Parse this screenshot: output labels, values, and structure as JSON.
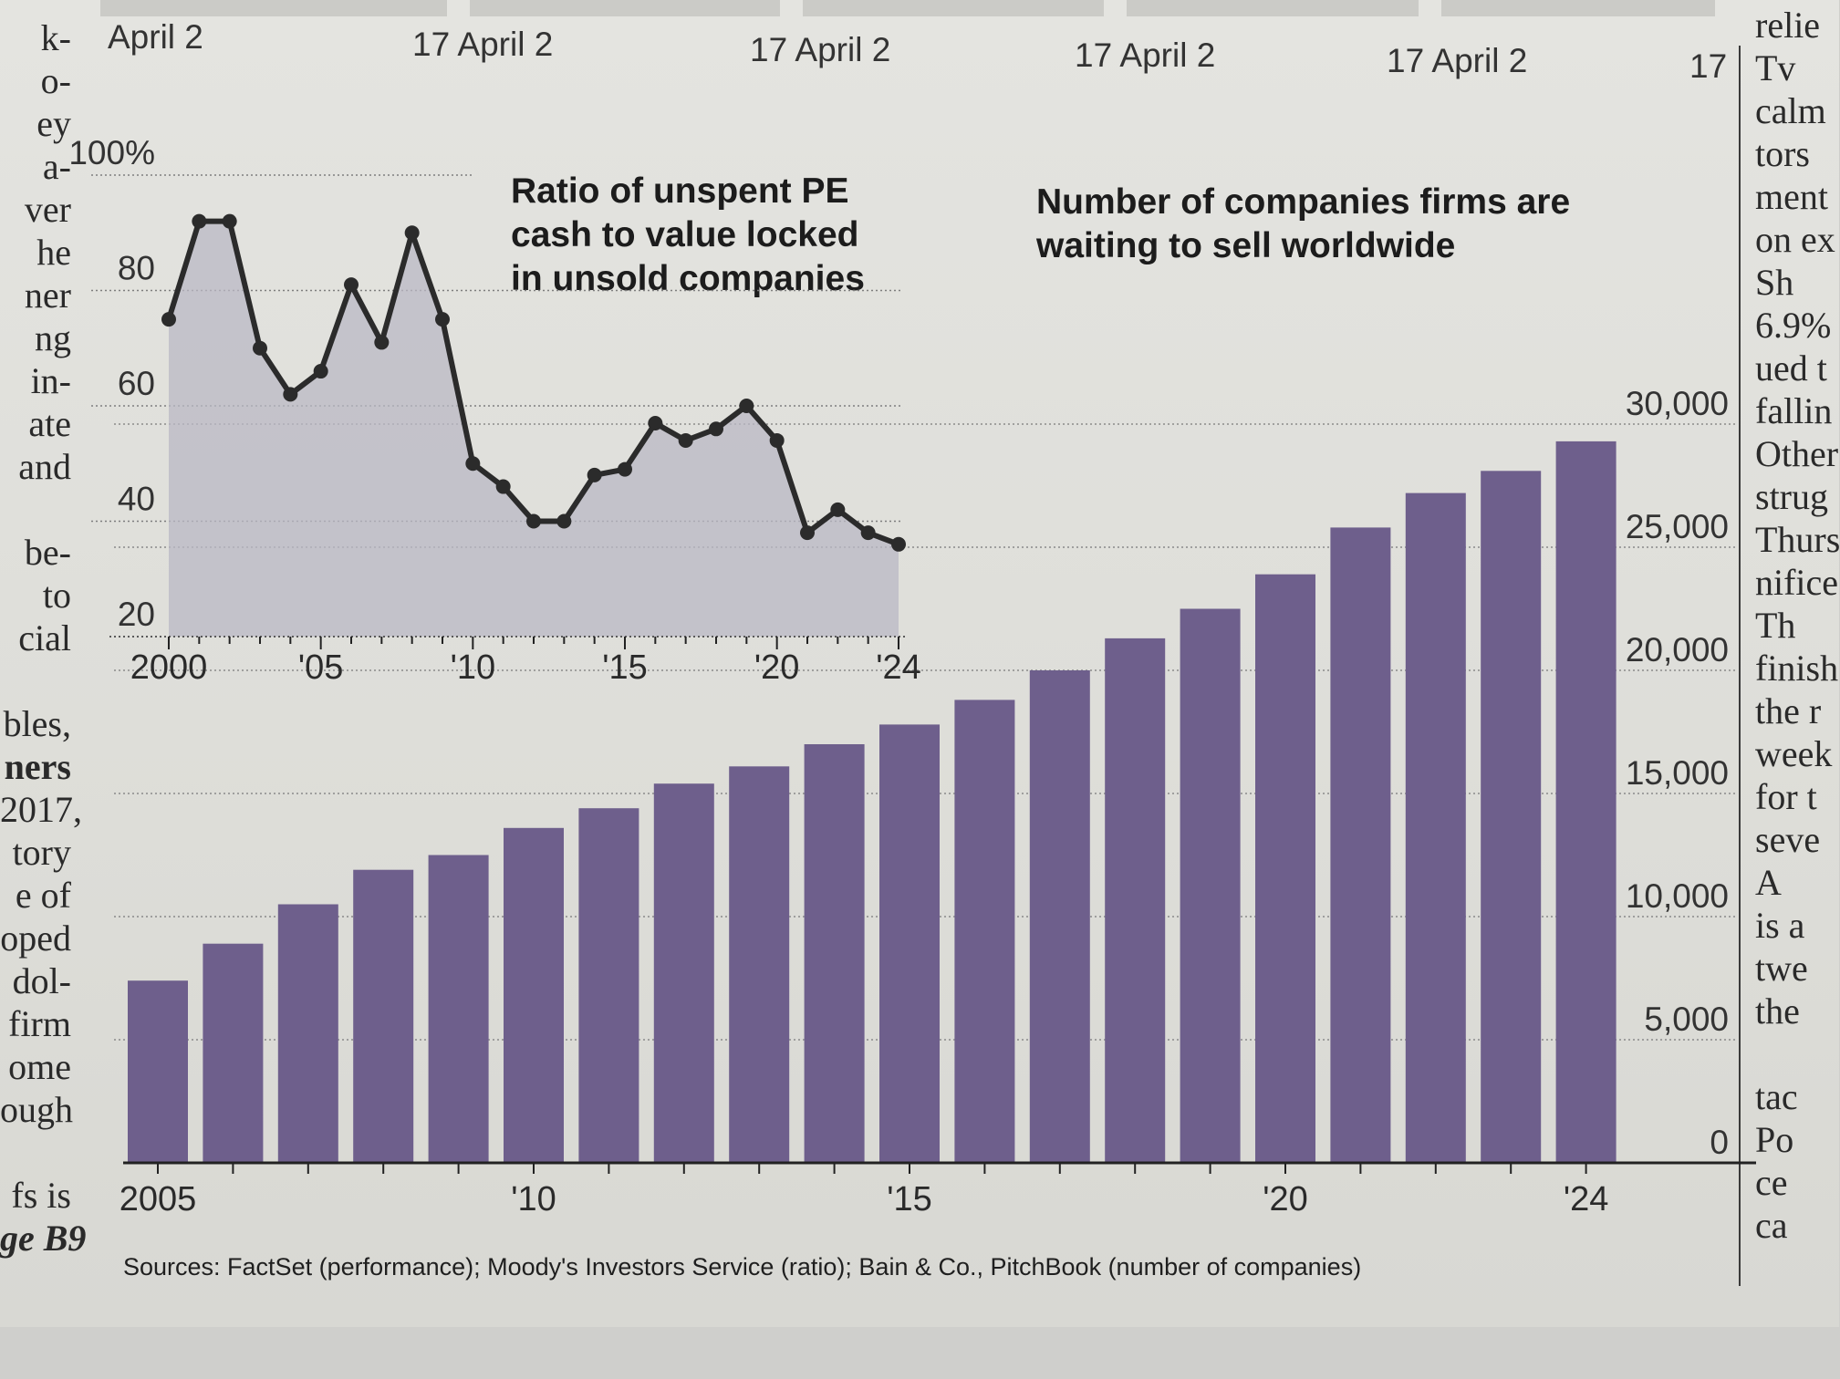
{
  "page": {
    "sources": "Sources: FactSet (performance); Moody's Investors Service (ratio); Bain & Co., PitchBook (number of companies)",
    "left_column_fragments": [
      "k-",
      "o-",
      "ey",
      "a-",
      "ver",
      "he",
      "ner",
      "ng",
      "in-",
      "ate",
      "and",
      "",
      "be-",
      "to",
      "cial",
      "",
      "bles,",
      "ners",
      "2017,",
      "tory",
      "e of",
      "oped",
      "dol-",
      "firm",
      "ome",
      "ough",
      "",
      "fs is",
      "ge B9"
    ],
    "right_column_fragments": [
      "relie",
      "Tv",
      "calm",
      "tors",
      "ment",
      "on ex",
      "Sh",
      "6.9%",
      "ued t",
      "fallin",
      "Other",
      "strug",
      "Thurs",
      "nifice",
      "Th",
      "finish",
      "the r",
      "week",
      "for t",
      "seve",
      "A",
      "is a",
      "twe",
      "the",
      "",
      "tac",
      "Po",
      "ce",
      "ca"
    ],
    "top_strip_ticks": [
      "April 2",
      "17  April 2",
      "17  April 2",
      "17  April 2",
      "17  April 2",
      "17"
    ]
  },
  "chart_data": [
    {
      "type": "area",
      "title": "Ratio of unspent PE cash to value locked in unsold companies",
      "x": [
        2000,
        2001,
        2002,
        2003,
        2004,
        2005,
        2006,
        2007,
        2008,
        2009,
        2010,
        2011,
        2012,
        2013,
        2014,
        2015,
        2016,
        2017,
        2018,
        2019,
        2020,
        2021,
        2022,
        2023,
        2024
      ],
      "values": [
        75,
        92,
        92,
        70,
        62,
        66,
        81,
        71,
        90,
        75,
        50,
        46,
        40,
        40,
        48,
        49,
        57,
        54,
        56,
        60,
        54,
        38,
        42,
        38,
        36
      ],
      "xlim": [
        2000,
        2024
      ],
      "ylim": [
        20,
        100
      ],
      "yticks": [
        20,
        40,
        60,
        80,
        100
      ],
      "ytick_labels": [
        "20",
        "40",
        "60",
        "80",
        "100%"
      ],
      "xticks": [
        2000,
        2005,
        2010,
        2015,
        2020,
        2024
      ],
      "xtick_labels": [
        "2000",
        "'05",
        "'10",
        "'15",
        "'20",
        "'24"
      ],
      "grid": true,
      "colors": {
        "line": "#2b2b2b",
        "fill": "#b9b8c4"
      }
    },
    {
      "type": "bar",
      "title": "Number of companies firms are waiting to sell worldwide",
      "categories": [
        2005,
        2006,
        2007,
        2008,
        2009,
        2010,
        2011,
        2012,
        2013,
        2014,
        2015,
        2016,
        2017,
        2018,
        2019,
        2020,
        2021,
        2022,
        2023,
        2024
      ],
      "values": [
        7400,
        8900,
        10500,
        11900,
        12500,
        13600,
        14400,
        15400,
        16100,
        17000,
        17800,
        18800,
        20000,
        21300,
        22500,
        23900,
        25800,
        27200,
        28100,
        29300
      ],
      "ylim": [
        0,
        30000
      ],
      "yticks": [
        0,
        5000,
        10000,
        15000,
        20000,
        25000,
        30000
      ],
      "ytick_labels": [
        "0",
        "5,000",
        "10,000",
        "15,000",
        "20,000",
        "25,000",
        "30,000"
      ],
      "xtick_labels": [
        {
          "year": 2005,
          "label": "2005"
        },
        {
          "year": 2010,
          "label": "'10"
        },
        {
          "year": 2015,
          "label": "'15"
        },
        {
          "year": 2020,
          "label": "'20"
        },
        {
          "year": 2024,
          "label": "'24"
        }
      ],
      "grid": true,
      "colors": {
        "bar": "#6e5f8c"
      }
    }
  ]
}
